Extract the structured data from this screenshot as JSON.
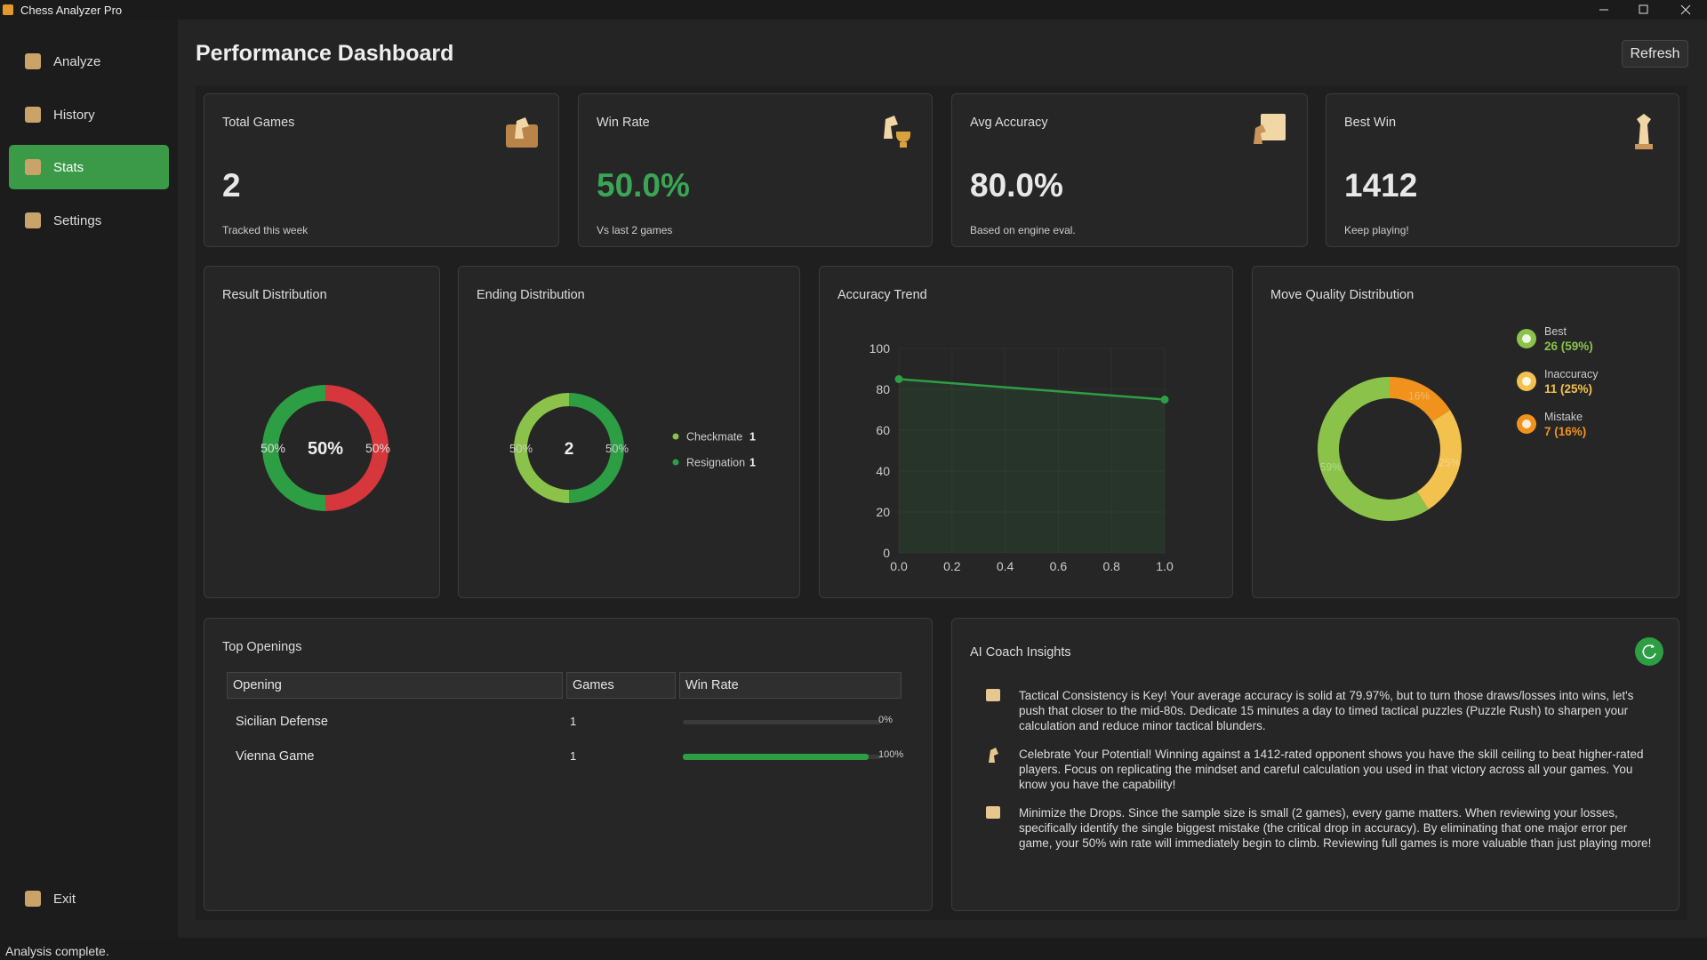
{
  "window": {
    "title": "Chess Analyzer Pro"
  },
  "nav": [
    {
      "label": "Analyze",
      "active": false
    },
    {
      "label": "History",
      "active": false
    },
    {
      "label": "Stats",
      "active": true
    },
    {
      "label": "Settings",
      "active": false
    }
  ],
  "exit": "Exit",
  "status": "Analysis complete.",
  "header": {
    "title": "Performance Dashboard",
    "button": "Refresh"
  },
  "cards": [
    {
      "title": "Total Games",
      "value": "2",
      "note": "Tracked this week",
      "accent": false
    },
    {
      "title": "Win Rate",
      "value": "50.0%",
      "note": "Vs last 2 games",
      "accent": true
    },
    {
      "title": "Avg Accuracy",
      "value": "80.0%",
      "note": "Based on engine eval.",
      "accent": false
    },
    {
      "title": "Best Win",
      "value": "1412",
      "note": "Keep playing!",
      "accent": false
    }
  ],
  "result_chart": {
    "type": "pie",
    "title": "Result Distribution",
    "center_label": "50%",
    "values": [
      50,
      50
    ],
    "value_labels": [
      "50%",
      "50%"
    ],
    "colors": [
      "#2e9e44",
      "#d6373c"
    ]
  },
  "ending_chart": {
    "type": "pie",
    "title": "Ending Distribution",
    "center_label": "2",
    "categories": [
      "Checkmate",
      "Resignation"
    ],
    "values": [
      1,
      1
    ],
    "shares": [
      50,
      50
    ],
    "share_labels": [
      "50%",
      "50%"
    ],
    "colors": [
      "#8bc34a",
      "#2e9e44"
    ]
  },
  "accuracy_chart": {
    "type": "line",
    "title": "Accuracy Trend",
    "x": [
      0,
      1
    ],
    "values": [
      85,
      75
    ],
    "color": "#2e9e44",
    "xlim": [
      0,
      1
    ],
    "ylim": [
      0,
      100
    ],
    "xticks": [
      {
        "value": 0,
        "label": "0.0"
      },
      0.2,
      0.4,
      0.6,
      0.8,
      {
        "value": 1,
        "label": "1.0"
      }
    ],
    "yticks": [
      0,
      20,
      40,
      60,
      80,
      100
    ],
    "grid": true
  },
  "quality_chart": {
    "type": "pie",
    "title": "Move Quality Distribution",
    "categories": [
      "Best",
      "Inaccuracy",
      "Mistake"
    ],
    "values": [
      26,
      11,
      7
    ],
    "value_labels": [
      "26 (59%)",
      "11 (25%)",
      "7 (16%)"
    ],
    "slice_labels": [
      "59%",
      "25%",
      "16%"
    ],
    "colors": [
      "#8bc34a",
      "#f2c14e",
      "#f0921c"
    ]
  },
  "openings": {
    "title": "Top Openings",
    "columns": [
      "Opening",
      "Games",
      "Win Rate"
    ],
    "xlim": [
      0,
      100
    ],
    "rows": [
      {
        "name": "Sicilian Defense",
        "games": 1,
        "win_rate": 0,
        "win_rate_label": "0%"
      },
      {
        "name": "Vienna Game",
        "games": 1,
        "win_rate": 100,
        "win_rate_label": "100%"
      }
    ]
  },
  "insights": {
    "title": "AI Coach Insights",
    "items": [
      "Tactical Consistency is Key! Your average accuracy is solid at 79.97%, but to turn those draws/losses into wins, let's push that closer to the mid-80s. Dedicate 15 minutes a day to timed tactical puzzles (Puzzle Rush) to sharpen your calculation and reduce minor tactical blunders.",
      "Celebrate Your Potential! Winning against a 1412-rated opponent shows you have the skill ceiling to beat higher-rated players. Focus on replicating the mindset and careful calculation you used in that victory across all your games. You know you have the capability!",
      "Minimize the Drops. Since the sample size is small (2 games), every game matters. When reviewing your losses, specifically identify the single biggest mistake (the critical drop in accuracy). By eliminating that one major error per game, your 50% win rate will immediately begin to climb. Reviewing full games is more valuable than just playing more!"
    ]
  }
}
